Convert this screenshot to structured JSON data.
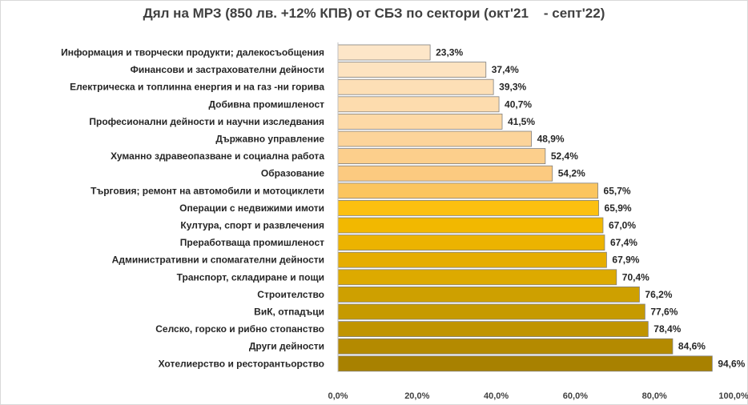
{
  "chart_data": {
    "type": "bar",
    "orientation": "horizontal",
    "title": "Дял на МРЗ (850 лв. +12% КПВ) от СБЗ по сектори (окт'21    - септ'22)",
    "categories": [
      "Информация и творчески продукти; далекосъобщения",
      "Финансови и застрахователни дейности",
      "Електрическа и топлинна енергия и на газ -ни горива",
      "Добивна промишленост",
      "Професионални дейности и научни изследвания",
      "Държавно управление",
      "Хуманно здравеопазване и социална работа",
      "Образование",
      "Търговия; ремонт на автомобили и мотоциклети",
      "Операции с недвижими имоти",
      "Култура, спорт и развлечения",
      "Преработваща промишленост",
      "Административни и спомагателни дейности",
      "Транспорт, складиране и пощи",
      "Строителство",
      "ВиК, отпадъци",
      "Селско, горско и рибно стопанство",
      "Други дейности",
      "Хотелиерство и ресторантьорство"
    ],
    "values": [
      23.3,
      37.4,
      39.3,
      40.7,
      41.5,
      48.9,
      52.4,
      54.2,
      65.7,
      65.9,
      67.0,
      67.4,
      67.9,
      70.4,
      76.2,
      77.6,
      78.4,
      84.6,
      94.6
    ],
    "value_labels": [
      "23,3%",
      "37,4%",
      "39,3%",
      "40,7%",
      "41,5%",
      "48,9%",
      "52,4%",
      "54,2%",
      "65,7%",
      "65,9%",
      "67,0%",
      "67,4%",
      "67,9%",
      "70,4%",
      "76,2%",
      "77,6%",
      "78,4%",
      "84,6%",
      "94,6%"
    ],
    "bar_colors": [
      "#fde6c8",
      "#fde3c0",
      "#fddfb6",
      "#fddcae",
      "#fdd9a6",
      "#fcd49a",
      "#fccf8c",
      "#fcca80",
      "#fbc55e",
      "#fcc010",
      "#f2b800",
      "#ecb300",
      "#e6ad00",
      "#ddaa00",
      "#cea000",
      "#c69a00",
      "#c09400",
      "#b48a00",
      "#a88100"
    ],
    "xlim": [
      0,
      100
    ],
    "x_ticks": [
      0,
      20,
      40,
      60,
      80,
      100
    ],
    "x_tick_labels": [
      "0,0%",
      "20,0%",
      "40,0%",
      "60,0%",
      "80,0%",
      "100,0%"
    ],
    "xlabel": "",
    "ylabel": "",
    "grid": false,
    "legend": "none",
    "bar_edge_color": "#7f7f7f"
  }
}
